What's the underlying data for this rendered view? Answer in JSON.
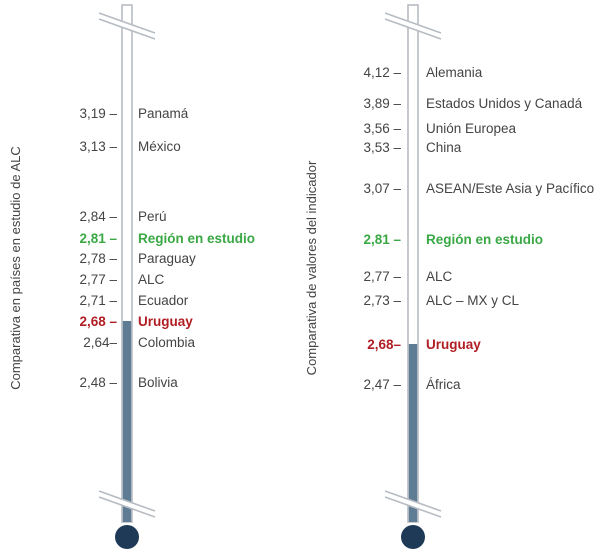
{
  "colors": {
    "text": "#444444",
    "tube_outline": "#b7bcc3",
    "fill": "#5f7c95",
    "bulb": "#1f3a56",
    "highlight_region": "#3aa845",
    "highlight_uruguay": "#b01e23"
  },
  "chart_data": [
    {
      "type": "thermometer",
      "ylabel": "Comparativa en países en estudio de ALC",
      "axis_break_top": true,
      "axis_break_bottom": true,
      "fill_level": 2.68,
      "points": [
        {
          "value_label": "3,19 –",
          "value": 3.19,
          "name": "Panamá",
          "highlight": ""
        },
        {
          "value_label": "3,13 –",
          "value": 3.13,
          "name": "México",
          "highlight": ""
        },
        {
          "value_label": "2,84 –",
          "value": 2.84,
          "name": "Perú",
          "highlight": ""
        },
        {
          "value_label": "2,81 –",
          "value": 2.81,
          "name": "Región en estudio",
          "highlight": "region"
        },
        {
          "value_label": "2,78 –",
          "value": 2.78,
          "name": "Paraguay",
          "highlight": ""
        },
        {
          "value_label": "2,77 –",
          "value": 2.77,
          "name": "ALC",
          "highlight": ""
        },
        {
          "value_label": "2,71 –",
          "value": 2.71,
          "name": "Ecuador",
          "highlight": ""
        },
        {
          "value_label": "2,68 –",
          "value": 2.68,
          "name": "Uruguay",
          "highlight": "uruguay"
        },
        {
          "value_label": "2,64–",
          "value": 2.64,
          "name": "Colombia",
          "highlight": ""
        },
        {
          "value_label": "2,48 –",
          "value": 2.48,
          "name": "Bolivia",
          "highlight": ""
        }
      ]
    },
    {
      "type": "thermometer",
      "ylabel": "Comparativa de valores del indicador",
      "axis_break_top": true,
      "axis_break_bottom": true,
      "fill_level": 2.68,
      "points": [
        {
          "value_label": "4,12 –",
          "value": 4.12,
          "name": "Alemania",
          "highlight": ""
        },
        {
          "value_label": "3,89 –",
          "value": 3.89,
          "name": "Estados Unidos y Canadá",
          "highlight": ""
        },
        {
          "value_label": "3,56 –",
          "value": 3.56,
          "name": "Unión Europea",
          "highlight": ""
        },
        {
          "value_label": "3,53 –",
          "value": 3.53,
          "name": "China",
          "highlight": ""
        },
        {
          "value_label": "3,07 –",
          "value": 3.07,
          "name": "ASEAN/Este Asia y Pacífico",
          "highlight": ""
        },
        {
          "value_label": "2,81 –",
          "value": 2.81,
          "name": "Región en estudio",
          "highlight": "region"
        },
        {
          "value_label": "2,77 –",
          "value": 2.77,
          "name": "ALC",
          "highlight": ""
        },
        {
          "value_label": "2,73 –",
          "value": 2.73,
          "name": "ALC – MX y CL",
          "highlight": ""
        },
        {
          "value_label": "2,68–",
          "value": 2.68,
          "name": "Uruguay",
          "highlight": "uruguay"
        },
        {
          "value_label": "2,47 –",
          "value": 2.47,
          "name": "África",
          "highlight": ""
        }
      ]
    }
  ]
}
